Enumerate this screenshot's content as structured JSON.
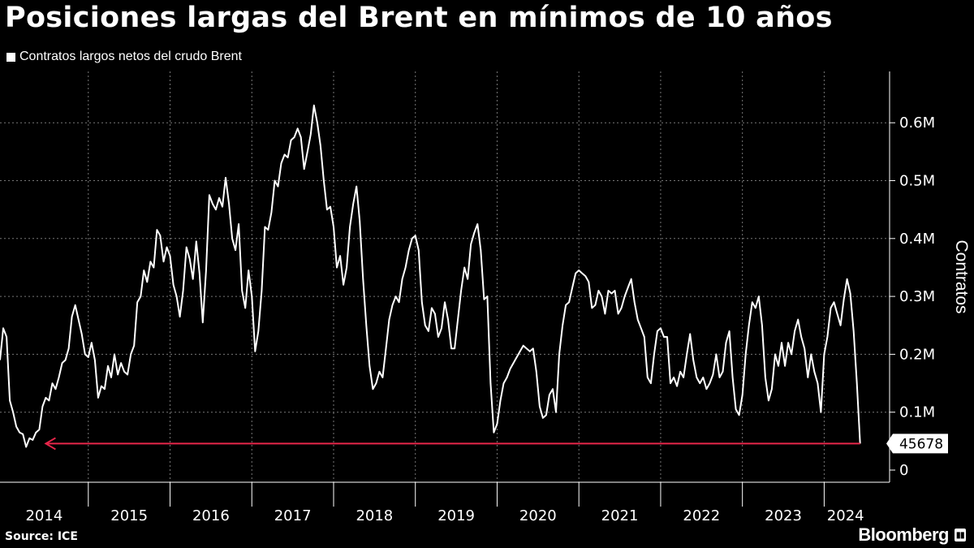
{
  "header": {
    "title": "Posiciones largas del Brent en mínimos de 10 años",
    "legend_label": "Contratos largos netos del crudo Brent"
  },
  "footer": {
    "source": "Source: ICE",
    "brand": "Bloomberg"
  },
  "colors": {
    "background": "#000000",
    "line": "#ffffff",
    "arrow": "#e8264a",
    "grid": "#777777"
  },
  "chart_data": {
    "type": "line",
    "title": "Posiciones largas del Brent en mínimos de 10 años",
    "ylabel": "Contratos",
    "ylim": [
      0,
      700000
    ],
    "xlim": [
      2013.92,
      2024.8
    ],
    "y_ticks": [
      {
        "value": 0,
        "label": "0"
      },
      {
        "value": 100000,
        "label": "0.1M"
      },
      {
        "value": 200000,
        "label": "0.2M"
      },
      {
        "value": 300000,
        "label": "0.3M"
      },
      {
        "value": 400000,
        "label": "0.4M"
      },
      {
        "value": 500000,
        "label": "0.5M"
      },
      {
        "value": 600000,
        "label": "0.6M"
      }
    ],
    "x_ticks": [
      "2014",
      "2015",
      "2016",
      "2017",
      "2018",
      "2019",
      "2020",
      "2021",
      "2022",
      "2023",
      "2024"
    ],
    "grid": true,
    "legend_position": "top-left",
    "annotation": {
      "label": "45678",
      "value": 45678,
      "arrow_from_x": 2024.44,
      "arrow_to_x": 2014.48
    },
    "series": [
      {
        "name": "Contratos largos netos del crudo Brent",
        "x": [
          2013.92,
          2013.96,
          2014.0,
          2014.04,
          2014.08,
          2014.12,
          2014.16,
          2014.2,
          2014.24,
          2014.28,
          2014.32,
          2014.36,
          2014.4,
          2014.44,
          2014.48,
          2014.52,
          2014.56,
          2014.6,
          2014.64,
          2014.68,
          2014.72,
          2014.76,
          2014.8,
          2014.84,
          2014.88,
          2014.92,
          2014.96,
          2015.0,
          2015.04,
          2015.08,
          2015.12,
          2015.16,
          2015.2,
          2015.24,
          2015.28,
          2015.32,
          2015.36,
          2015.4,
          2015.44,
          2015.48,
          2015.52,
          2015.56,
          2015.6,
          2015.64,
          2015.68,
          2015.72,
          2015.76,
          2015.8,
          2015.84,
          2015.88,
          2015.92,
          2015.96,
          2016.0,
          2016.04,
          2016.08,
          2016.12,
          2016.16,
          2016.2,
          2016.24,
          2016.28,
          2016.32,
          2016.36,
          2016.4,
          2016.44,
          2016.48,
          2016.52,
          2016.56,
          2016.6,
          2016.64,
          2016.68,
          2016.72,
          2016.76,
          2016.8,
          2016.84,
          2016.88,
          2016.92,
          2016.96,
          2017.0,
          2017.04,
          2017.08,
          2017.12,
          2017.16,
          2017.2,
          2017.24,
          2017.28,
          2017.32,
          2017.36,
          2017.4,
          2017.44,
          2017.48,
          2017.52,
          2017.56,
          2017.6,
          2017.64,
          2017.68,
          2017.72,
          2017.76,
          2017.8,
          2017.84,
          2017.88,
          2017.92,
          2017.96,
          2018.0,
          2018.04,
          2018.08,
          2018.12,
          2018.16,
          2018.2,
          2018.24,
          2018.28,
          2018.32,
          2018.36,
          2018.4,
          2018.44,
          2018.48,
          2018.52,
          2018.56,
          2018.6,
          2018.64,
          2018.68,
          2018.72,
          2018.76,
          2018.8,
          2018.84,
          2018.88,
          2018.92,
          2018.96,
          2019.0,
          2019.04,
          2019.08,
          2019.12,
          2019.16,
          2019.2,
          2019.24,
          2019.28,
          2019.32,
          2019.36,
          2019.4,
          2019.44,
          2019.48,
          2019.52,
          2019.56,
          2019.6,
          2019.64,
          2019.68,
          2019.72,
          2019.76,
          2019.8,
          2019.84,
          2019.88,
          2019.92,
          2019.96,
          2020.0,
          2020.04,
          2020.08,
          2020.12,
          2020.16,
          2020.2,
          2020.24,
          2020.28,
          2020.32,
          2020.36,
          2020.4,
          2020.44,
          2020.48,
          2020.52,
          2020.56,
          2020.6,
          2020.64,
          2020.68,
          2020.72,
          2020.76,
          2020.8,
          2020.84,
          2020.88,
          2020.92,
          2020.96,
          2021.0,
          2021.04,
          2021.08,
          2021.12,
          2021.16,
          2021.2,
          2021.24,
          2021.28,
          2021.32,
          2021.36,
          2021.4,
          2021.44,
          2021.48,
          2021.52,
          2021.56,
          2021.6,
          2021.64,
          2021.68,
          2021.72,
          2021.76,
          2021.8,
          2021.84,
          2021.88,
          2021.92,
          2021.96,
          2022.0,
          2022.04,
          2022.08,
          2022.12,
          2022.16,
          2022.2,
          2022.24,
          2022.28,
          2022.32,
          2022.36,
          2022.4,
          2022.44,
          2022.48,
          2022.52,
          2022.56,
          2022.6,
          2022.64,
          2022.68,
          2022.72,
          2022.76,
          2022.8,
          2022.84,
          2022.88,
          2022.92,
          2022.96,
          2023.0,
          2023.04,
          2023.08,
          2023.12,
          2023.16,
          2023.2,
          2023.24,
          2023.28,
          2023.32,
          2023.36,
          2023.4,
          2023.44,
          2023.48,
          2023.52,
          2023.56,
          2023.6,
          2023.64,
          2023.68,
          2023.72,
          2023.76,
          2023.8,
          2023.84,
          2023.88,
          2023.92,
          2023.96,
          2024.0,
          2024.04,
          2024.08,
          2024.12,
          2024.16,
          2024.2,
          2024.24,
          2024.28,
          2024.32,
          2024.36,
          2024.4,
          2024.44
        ],
        "values": [
          190000,
          245000,
          230000,
          120000,
          100000,
          75000,
          65000,
          62000,
          40000,
          55000,
          52000,
          65000,
          70000,
          110000,
          125000,
          120000,
          150000,
          140000,
          160000,
          185000,
          190000,
          210000,
          265000,
          285000,
          260000,
          235000,
          200000,
          195000,
          220000,
          190000,
          125000,
          145000,
          140000,
          180000,
          160000,
          200000,
          165000,
          185000,
          170000,
          165000,
          200000,
          215000,
          290000,
          300000,
          345000,
          325000,
          360000,
          350000,
          415000,
          405000,
          360000,
          385000,
          370000,
          320000,
          300000,
          265000,
          310000,
          385000,
          365000,
          330000,
          395000,
          340000,
          255000,
          345000,
          475000,
          460000,
          450000,
          470000,
          455000,
          505000,
          460000,
          400000,
          380000,
          425000,
          310000,
          280000,
          345000,
          300000,
          205000,
          240000,
          310000,
          420000,
          415000,
          445000,
          500000,
          490000,
          530000,
          545000,
          540000,
          570000,
          575000,
          590000,
          575000,
          520000,
          550000,
          580000,
          630000,
          600000,
          560000,
          500000,
          450000,
          455000,
          420000,
          350000,
          370000,
          320000,
          350000,
          420000,
          460000,
          490000,
          430000,
          330000,
          250000,
          180000,
          140000,
          150000,
          170000,
          160000,
          210000,
          260000,
          285000,
          300000,
          290000,
          330000,
          350000,
          380000,
          400000,
          405000,
          380000,
          290000,
          250000,
          240000,
          280000,
          270000,
          230000,
          245000,
          290000,
          260000,
          210000,
          210000,
          260000,
          310000,
          350000,
          330000,
          390000,
          410000,
          425000,
          380000,
          295000,
          300000,
          150000,
          65000,
          80000,
          120000,
          150000,
          160000,
          175000,
          185000,
          195000,
          205000,
          215000,
          210000,
          205000,
          210000,
          170000,
          110000,
          90000,
          95000,
          130000,
          140000,
          100000,
          200000,
          250000,
          285000,
          290000,
          315000,
          340000,
          345000,
          340000,
          335000,
          325000,
          280000,
          285000,
          310000,
          300000,
          270000,
          310000,
          305000,
          310000,
          270000,
          280000,
          300000,
          315000,
          330000,
          290000,
          260000,
          245000,
          230000,
          160000,
          150000,
          200000,
          240000,
          245000,
          230000,
          230000,
          150000,
          160000,
          145000,
          170000,
          160000,
          200000,
          235000,
          190000,
          160000,
          150000,
          160000,
          140000,
          150000,
          165000,
          200000,
          160000,
          170000,
          220000,
          240000,
          160000,
          105000,
          95000,
          130000,
          200000,
          250000,
          290000,
          280000,
          300000,
          250000,
          160000,
          120000,
          140000,
          200000,
          180000,
          220000,
          180000,
          220000,
          200000,
          240000,
          260000,
          230000,
          210000,
          160000,
          200000,
          170000,
          150000,
          100000,
          200000,
          230000,
          280000,
          290000,
          270000,
          250000,
          295000,
          330000,
          305000,
          240000,
          150000,
          45678
        ]
      }
    ]
  }
}
